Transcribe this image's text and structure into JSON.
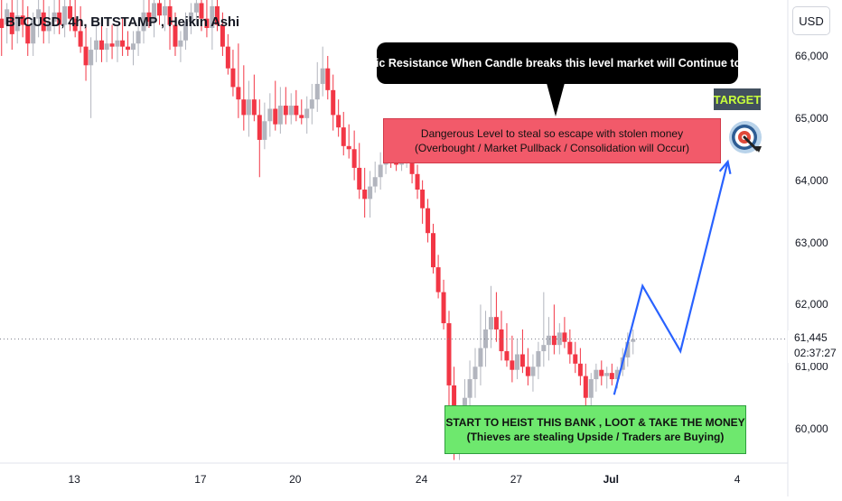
{
  "header": {
    "title": "BTCUSD, 4h, BITSTAMP , Heikin Ashi",
    "currency": "USD"
  },
  "price": {
    "last": "61,445",
    "countdown": "02:37:27"
  },
  "annotations": {
    "resistance": "Dynamic Resistance When Candle breaks this level market will Continue to go UP",
    "danger_line1": "Dangerous Level to steal so escape with stolen money",
    "danger_line2": "(Overbought / Market Pullback / Consolidation will Occur)",
    "heist_line1": "START TO HEIST THIS BANK , LOOT & TAKE THE MONEY",
    "heist_line2": "(Thieves are stealing Upside / Traders are Buying)",
    "target": "TARGET"
  },
  "colors": {
    "up": "#b2b5be",
    "down": "#f23645",
    "projection": "#2962ff",
    "danger_box": "#f25a6a",
    "heist_box": "#6ee86e",
    "callout": "#000000"
  },
  "chart_data": {
    "type": "candlestick",
    "title": "BTCUSD, 4h, BITSTAMP , Heikin Ashi",
    "y_unit": "USD",
    "ylim": [
      59450,
      66900
    ],
    "yticks": [
      60000,
      61000,
      62000,
      63000,
      64000,
      65000,
      66000
    ],
    "ytick_labels": [
      "60,000",
      "61,000",
      "62,000",
      "63,000",
      "64,000",
      "65,000",
      "66,000"
    ],
    "x_label_days": [
      13,
      17,
      20,
      24,
      27,
      30,
      34
    ],
    "x_labels": [
      "13",
      "17",
      "20",
      "24",
      "27",
      "Jul",
      "4"
    ],
    "x_domain": [
      10.65,
      35.6
    ],
    "candles": [
      {
        "x": 10.7,
        "o": 66600,
        "h": 66900,
        "l": 66000,
        "c": 66450
      },
      {
        "x": 10.87,
        "o": 66500,
        "h": 66850,
        "l": 66200,
        "c": 66750
      },
      {
        "x": 11.03,
        "o": 66700,
        "h": 66900,
        "l": 66100,
        "c": 66350
      },
      {
        "x": 11.2,
        "o": 66400,
        "h": 66900,
        "l": 66200,
        "c": 66650
      },
      {
        "x": 11.37,
        "o": 66650,
        "h": 66900,
        "l": 66300,
        "c": 66500
      },
      {
        "x": 11.53,
        "o": 66500,
        "h": 66800,
        "l": 66000,
        "c": 66200
      },
      {
        "x": 11.7,
        "o": 66200,
        "h": 66700,
        "l": 66000,
        "c": 66600
      },
      {
        "x": 11.87,
        "o": 66600,
        "h": 66900,
        "l": 66300,
        "c": 66750
      },
      {
        "x": 12.03,
        "o": 66700,
        "h": 66900,
        "l": 66200,
        "c": 66400
      },
      {
        "x": 12.2,
        "o": 66400,
        "h": 66800,
        "l": 66200,
        "c": 66550
      },
      {
        "x": 12.37,
        "o": 66550,
        "h": 66900,
        "l": 66350,
        "c": 66700
      },
      {
        "x": 12.53,
        "o": 66700,
        "h": 66900,
        "l": 66350,
        "c": 66500
      },
      {
        "x": 12.7,
        "o": 66500,
        "h": 66900,
        "l": 66300,
        "c": 66800
      },
      {
        "x": 12.87,
        "o": 66800,
        "h": 66900,
        "l": 66400,
        "c": 66600
      },
      {
        "x": 13.03,
        "o": 66600,
        "h": 66900,
        "l": 66300,
        "c": 66400
      },
      {
        "x": 13.2,
        "o": 66400,
        "h": 66800,
        "l": 66050,
        "c": 66150
      },
      {
        "x": 13.37,
        "o": 66150,
        "h": 66500,
        "l": 65600,
        "c": 65850
      },
      {
        "x": 13.53,
        "o": 65850,
        "h": 66300,
        "l": 65000,
        "c": 66100
      },
      {
        "x": 13.7,
        "o": 66100,
        "h": 66500,
        "l": 65900,
        "c": 66250
      },
      {
        "x": 13.87,
        "o": 66250,
        "h": 66600,
        "l": 65900,
        "c": 66100
      },
      {
        "x": 14.03,
        "o": 66100,
        "h": 66450,
        "l": 65900,
        "c": 66200
      },
      {
        "x": 14.2,
        "o": 66200,
        "h": 66500,
        "l": 65950,
        "c": 66150
      },
      {
        "x": 14.37,
        "o": 66150,
        "h": 66500,
        "l": 65900,
        "c": 66250
      },
      {
        "x": 14.53,
        "o": 66250,
        "h": 66600,
        "l": 66000,
        "c": 66150
      },
      {
        "x": 14.7,
        "o": 66150,
        "h": 66400,
        "l": 66000,
        "c": 66100
      },
      {
        "x": 14.87,
        "o": 66100,
        "h": 66400,
        "l": 65850,
        "c": 66200
      },
      {
        "x": 15.03,
        "o": 66200,
        "h": 66600,
        "l": 66000,
        "c": 66400
      },
      {
        "x": 15.2,
        "o": 66400,
        "h": 66900,
        "l": 66200,
        "c": 66700
      },
      {
        "x": 15.37,
        "o": 66700,
        "h": 66900,
        "l": 66450,
        "c": 66550
      },
      {
        "x": 15.53,
        "o": 66550,
        "h": 66900,
        "l": 66300,
        "c": 66850
      },
      {
        "x": 15.7,
        "o": 66850,
        "h": 66900,
        "l": 66500,
        "c": 66650
      },
      {
        "x": 15.87,
        "o": 66650,
        "h": 66900,
        "l": 66400,
        "c": 66800
      },
      {
        "x": 16.03,
        "o": 66800,
        "h": 66900,
        "l": 66100,
        "c": 66500
      },
      {
        "x": 16.2,
        "o": 66500,
        "h": 66700,
        "l": 66000,
        "c": 66150
      },
      {
        "x": 16.37,
        "o": 66150,
        "h": 66400,
        "l": 65900,
        "c": 66250
      },
      {
        "x": 16.53,
        "o": 66250,
        "h": 66700,
        "l": 66100,
        "c": 66550
      },
      {
        "x": 16.7,
        "o": 66550,
        "h": 66850,
        "l": 66350,
        "c": 66700
      },
      {
        "x": 16.87,
        "o": 66700,
        "h": 66900,
        "l": 66500,
        "c": 66850
      },
      {
        "x": 17.03,
        "o": 66850,
        "h": 66900,
        "l": 66400,
        "c": 66600
      },
      {
        "x": 17.2,
        "o": 66600,
        "h": 66900,
        "l": 66300,
        "c": 66450
      },
      {
        "x": 17.37,
        "o": 66450,
        "h": 66900,
        "l": 66100,
        "c": 66800
      },
      {
        "x": 17.53,
        "o": 66800,
        "h": 66900,
        "l": 66400,
        "c": 66500
      },
      {
        "x": 17.7,
        "o": 66500,
        "h": 66700,
        "l": 66000,
        "c": 66150
      },
      {
        "x": 17.87,
        "o": 66150,
        "h": 66350,
        "l": 65700,
        "c": 65800
      },
      {
        "x": 18.03,
        "o": 65800,
        "h": 66100,
        "l": 65350,
        "c": 65500
      },
      {
        "x": 18.2,
        "o": 65500,
        "h": 66200,
        "l": 65000,
        "c": 65300
      },
      {
        "x": 18.37,
        "o": 65300,
        "h": 65850,
        "l": 64800,
        "c": 65050
      },
      {
        "x": 18.53,
        "o": 65050,
        "h": 65600,
        "l": 64700,
        "c": 65300
      },
      {
        "x": 18.7,
        "o": 65300,
        "h": 65700,
        "l": 64950,
        "c": 65050
      },
      {
        "x": 18.87,
        "o": 65050,
        "h": 65300,
        "l": 64050,
        "c": 64650
      },
      {
        "x": 19.03,
        "o": 64650,
        "h": 65250,
        "l": 64500,
        "c": 64950
      },
      {
        "x": 19.2,
        "o": 64950,
        "h": 65400,
        "l": 64700,
        "c": 65150
      },
      {
        "x": 19.37,
        "o": 65150,
        "h": 65600,
        "l": 64800,
        "c": 64900
      },
      {
        "x": 19.53,
        "o": 64900,
        "h": 65500,
        "l": 64750,
        "c": 65200
      },
      {
        "x": 19.7,
        "o": 65200,
        "h": 65500,
        "l": 64900,
        "c": 65050
      },
      {
        "x": 19.87,
        "o": 65050,
        "h": 65400,
        "l": 64900,
        "c": 65200
      },
      {
        "x": 20.03,
        "o": 65200,
        "h": 65450,
        "l": 64950,
        "c": 65050
      },
      {
        "x": 20.2,
        "o": 65050,
        "h": 65300,
        "l": 64900,
        "c": 65000
      },
      {
        "x": 20.37,
        "o": 65000,
        "h": 65350,
        "l": 64750,
        "c": 65150
      },
      {
        "x": 20.53,
        "o": 65150,
        "h": 65550,
        "l": 64900,
        "c": 65300
      },
      {
        "x": 20.7,
        "o": 65300,
        "h": 65900,
        "l": 65100,
        "c": 65550
      },
      {
        "x": 20.87,
        "o": 65550,
        "h": 66150,
        "l": 65350,
        "c": 65800
      },
      {
        "x": 21.03,
        "o": 65800,
        "h": 66000,
        "l": 65300,
        "c": 65450
      },
      {
        "x": 21.2,
        "o": 65450,
        "h": 65700,
        "l": 64800,
        "c": 65050
      },
      {
        "x": 21.37,
        "o": 65050,
        "h": 65300,
        "l": 64700,
        "c": 64850
      },
      {
        "x": 21.53,
        "o": 64850,
        "h": 65100,
        "l": 64400,
        "c": 64550
      },
      {
        "x": 21.7,
        "o": 64550,
        "h": 64900,
        "l": 64350,
        "c": 64500
      },
      {
        "x": 21.87,
        "o": 64500,
        "h": 64800,
        "l": 64000,
        "c": 64200
      },
      {
        "x": 22.03,
        "o": 64200,
        "h": 64600,
        "l": 63700,
        "c": 63850
      },
      {
        "x": 22.2,
        "o": 63850,
        "h": 64200,
        "l": 63400,
        "c": 63700
      },
      {
        "x": 22.37,
        "o": 63700,
        "h": 64150,
        "l": 63400,
        "c": 63900
      },
      {
        "x": 22.53,
        "o": 63900,
        "h": 64300,
        "l": 63800,
        "c": 64050
      },
      {
        "x": 22.7,
        "o": 64050,
        "h": 64450,
        "l": 63850,
        "c": 64250
      },
      {
        "x": 22.87,
        "o": 64250,
        "h": 64550,
        "l": 64100,
        "c": 64350
      },
      {
        "x": 23.03,
        "o": 64350,
        "h": 64550,
        "l": 64200,
        "c": 64300
      },
      {
        "x": 23.2,
        "o": 64300,
        "h": 64500,
        "l": 64150,
        "c": 64250
      },
      {
        "x": 23.37,
        "o": 64250,
        "h": 64450,
        "l": 64150,
        "c": 64300
      },
      {
        "x": 23.53,
        "o": 64300,
        "h": 64500,
        "l": 64200,
        "c": 64350
      },
      {
        "x": 23.7,
        "o": 64350,
        "h": 64450,
        "l": 63950,
        "c": 64100
      },
      {
        "x": 23.87,
        "o": 64100,
        "h": 64250,
        "l": 63700,
        "c": 63850
      },
      {
        "x": 24.03,
        "o": 63850,
        "h": 64000,
        "l": 63300,
        "c": 63550
      },
      {
        "x": 24.2,
        "o": 63550,
        "h": 63700,
        "l": 63000,
        "c": 63150
      },
      {
        "x": 24.37,
        "o": 63150,
        "h": 63300,
        "l": 62500,
        "c": 62600
      },
      {
        "x": 24.53,
        "o": 62600,
        "h": 62800,
        "l": 62100,
        "c": 62200
      },
      {
        "x": 24.7,
        "o": 62200,
        "h": 62400,
        "l": 61600,
        "c": 61700
      },
      {
        "x": 24.87,
        "o": 61700,
        "h": 61900,
        "l": 60300,
        "c": 60700
      },
      {
        "x": 25.03,
        "o": 60700,
        "h": 61000,
        "l": 59500,
        "c": 59800
      },
      {
        "x": 25.2,
        "o": 59800,
        "h": 60300,
        "l": 59500,
        "c": 60100
      },
      {
        "x": 25.37,
        "o": 60100,
        "h": 60800,
        "l": 60000,
        "c": 60500
      },
      {
        "x": 25.53,
        "o": 60500,
        "h": 61100,
        "l": 60300,
        "c": 60800
      },
      {
        "x": 25.7,
        "o": 60800,
        "h": 61300,
        "l": 60500,
        "c": 61000
      },
      {
        "x": 25.87,
        "o": 61000,
        "h": 62000,
        "l": 60700,
        "c": 61300
      },
      {
        "x": 26.03,
        "o": 61300,
        "h": 61900,
        "l": 61000,
        "c": 61600
      },
      {
        "x": 26.2,
        "o": 61600,
        "h": 62300,
        "l": 61300,
        "c": 61800
      },
      {
        "x": 26.37,
        "o": 61800,
        "h": 62200,
        "l": 61400,
        "c": 61600
      },
      {
        "x": 26.53,
        "o": 61600,
        "h": 61900,
        "l": 61100,
        "c": 61250
      },
      {
        "x": 26.7,
        "o": 61250,
        "h": 61700,
        "l": 61000,
        "c": 61100
      },
      {
        "x": 26.87,
        "o": 61100,
        "h": 61500,
        "l": 60750,
        "c": 60950
      },
      {
        "x": 27.03,
        "o": 60950,
        "h": 61450,
        "l": 60800,
        "c": 61200
      },
      {
        "x": 27.2,
        "o": 61200,
        "h": 61600,
        "l": 60900,
        "c": 61000
      },
      {
        "x": 27.37,
        "o": 61000,
        "h": 61300,
        "l": 60700,
        "c": 60850
      },
      {
        "x": 27.53,
        "o": 60850,
        "h": 61200,
        "l": 60600,
        "c": 61000
      },
      {
        "x": 27.7,
        "o": 61000,
        "h": 61400,
        "l": 60800,
        "c": 61250
      },
      {
        "x": 27.87,
        "o": 61250,
        "h": 62200,
        "l": 61000,
        "c": 61350
      },
      {
        "x": 28.03,
        "o": 61350,
        "h": 61800,
        "l": 61100,
        "c": 61500
      },
      {
        "x": 28.2,
        "o": 61500,
        "h": 62000,
        "l": 61200,
        "c": 61350
      },
      {
        "x": 28.37,
        "o": 61350,
        "h": 61700,
        "l": 61200,
        "c": 61550
      },
      {
        "x": 28.53,
        "o": 61550,
        "h": 61800,
        "l": 61300,
        "c": 61400
      },
      {
        "x": 28.7,
        "o": 61400,
        "h": 61600,
        "l": 61050,
        "c": 61200
      },
      {
        "x": 28.87,
        "o": 61200,
        "h": 61400,
        "l": 60900,
        "c": 61050
      },
      {
        "x": 29.03,
        "o": 61050,
        "h": 61300,
        "l": 60700,
        "c": 60850
      },
      {
        "x": 29.2,
        "o": 60850,
        "h": 61050,
        "l": 60250,
        "c": 60500
      },
      {
        "x": 29.37,
        "o": 60500,
        "h": 60900,
        "l": 60300,
        "c": 60800
      },
      {
        "x": 29.53,
        "o": 60800,
        "h": 61050,
        "l": 60600,
        "c": 60950
      },
      {
        "x": 29.7,
        "o": 60950,
        "h": 61100,
        "l": 60700,
        "c": 60850
      },
      {
        "x": 29.87,
        "o": 60850,
        "h": 61000,
        "l": 60650,
        "c": 60900
      },
      {
        "x": 30.03,
        "o": 60900,
        "h": 61050,
        "l": 60700,
        "c": 60800
      },
      {
        "x": 30.2,
        "o": 60800,
        "h": 61000,
        "l": 60650,
        "c": 60950
      },
      {
        "x": 30.37,
        "o": 60950,
        "h": 61300,
        "l": 60850,
        "c": 61150
      },
      {
        "x": 30.53,
        "o": 61150,
        "h": 61550,
        "l": 61000,
        "c": 61400
      },
      {
        "x": 30.7,
        "o": 61400,
        "h": 61600,
        "l": 61200,
        "c": 61445
      }
    ],
    "projection_path": [
      {
        "x": 30.1,
        "y": 60550
      },
      {
        "x": 31.0,
        "y": 62300
      },
      {
        "x": 32.2,
        "y": 61250
      },
      {
        "x": 33.7,
        "y": 64300
      }
    ],
    "arrow_end": {
      "x": 33.7,
      "y": 64300
    },
    "zones": {
      "danger": [
        64300,
        65000
      ],
      "heist": [
        59650,
        60400
      ]
    },
    "current_price": 61445
  }
}
